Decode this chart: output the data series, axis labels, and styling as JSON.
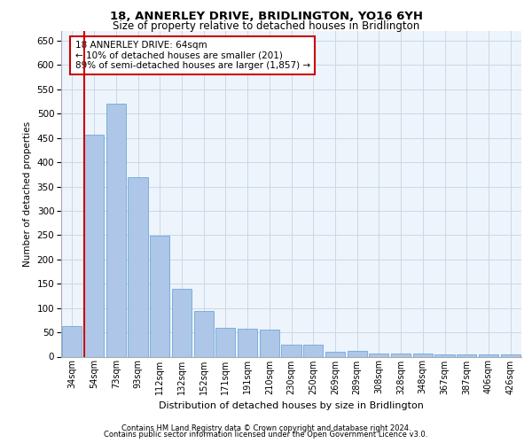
{
  "title": "18, ANNERLEY DRIVE, BRIDLINGTON, YO16 6YH",
  "subtitle": "Size of property relative to detached houses in Bridlington",
  "xlabel": "Distribution of detached houses by size in Bridlington",
  "ylabel": "Number of detached properties",
  "categories": [
    "34sqm",
    "54sqm",
    "73sqm",
    "93sqm",
    "112sqm",
    "132sqm",
    "152sqm",
    "171sqm",
    "191sqm",
    "210sqm",
    "230sqm",
    "250sqm",
    "269sqm",
    "289sqm",
    "308sqm",
    "328sqm",
    "348sqm",
    "367sqm",
    "387sqm",
    "406sqm",
    "426sqm"
  ],
  "values": [
    62,
    457,
    520,
    370,
    248,
    140,
    93,
    60,
    57,
    55,
    25,
    24,
    10,
    11,
    7,
    6,
    6,
    5,
    5,
    5,
    4
  ],
  "bar_color": "#aec6e8",
  "bar_edge_color": "#5a9fd4",
  "vline_x": 1.0,
  "vline_color": "#cc0000",
  "annotation_text": "18 ANNERLEY DRIVE: 64sqm\n← 10% of detached houses are smaller (201)\n89% of semi-detached houses are larger (1,857) →",
  "annotation_box_color": "#ffffff",
  "annotation_box_edge": "#cc0000",
  "ylim": [
    0,
    670
  ],
  "yticks": [
    0,
    50,
    100,
    150,
    200,
    250,
    300,
    350,
    400,
    450,
    500,
    550,
    600,
    650
  ],
  "grid_color": "#c8d8e8",
  "background_color": "#eef4fb",
  "footer1": "Contains HM Land Registry data © Crown copyright and database right 2024.",
  "footer2": "Contains public sector information licensed under the Open Government Licence v3.0."
}
